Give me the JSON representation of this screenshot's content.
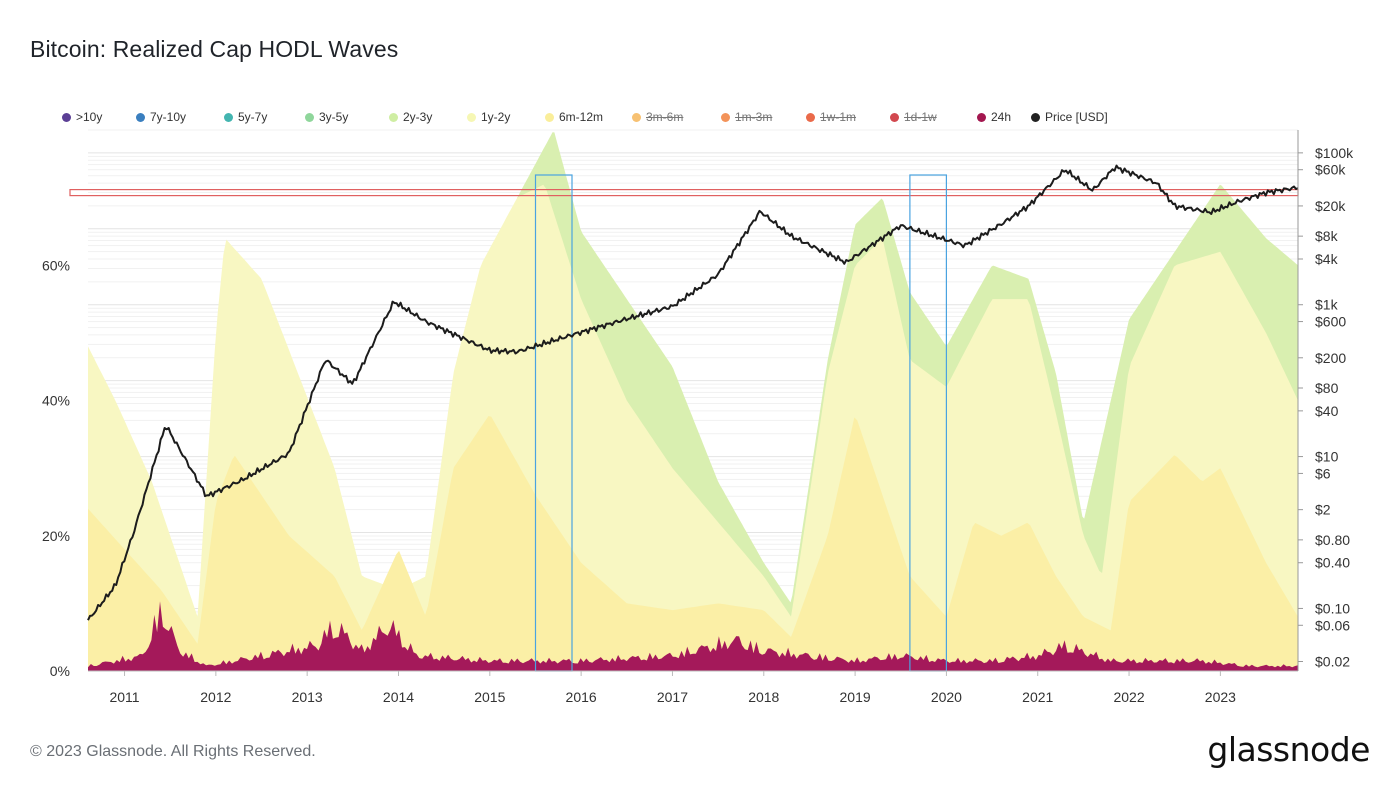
{
  "header": {
    "title": "Bitcoin: Realized Cap HODL Waves"
  },
  "legend": [
    {
      "label": ">10y",
      "color": "#5b3f95",
      "disabled": false
    },
    {
      "label": "7y-10y",
      "color": "#3a7fbf",
      "disabled": false
    },
    {
      "label": "5y-7y",
      "color": "#43b5b0",
      "disabled": false
    },
    {
      "label": "3y-5y",
      "color": "#8fd69b",
      "disabled": false
    },
    {
      "label": "2y-3y",
      "color": "#cfeea3",
      "disabled": false
    },
    {
      "label": "1y-2y",
      "color": "#f6f7b4",
      "disabled": false
    },
    {
      "label": "6m-12m",
      "color": "#faee9a",
      "disabled": false
    },
    {
      "label": "3m-6m",
      "color": "#f7c172",
      "disabled": true
    },
    {
      "label": "1m-3m",
      "color": "#f3935a",
      "disabled": true
    },
    {
      "label": "1w-1m",
      "color": "#ea6a4a",
      "disabled": true
    },
    {
      "label": "1d-1w",
      "color": "#d2484f",
      "disabled": true
    },
    {
      "label": "24h",
      "color": "#a3174f",
      "disabled": false
    },
    {
      "label": "Price [USD]",
      "color": "#222222",
      "disabled": false
    }
  ],
  "chart_data": {
    "type": "area",
    "title": "Bitcoin: Realized Cap HODL Waves",
    "x_ticks": [
      "2011",
      "2012",
      "2013",
      "2014",
      "2015",
      "2016",
      "2017",
      "2018",
      "2019",
      "2020",
      "2021",
      "2022",
      "2023"
    ],
    "x_range": [
      2010.6,
      2023.85
    ],
    "y_left_ticks": [
      "0%",
      "20%",
      "40%",
      "60%"
    ],
    "y_left_range": [
      0,
      80
    ],
    "y_right_ticks": [
      "$100k",
      "$60k",
      "$20k",
      "$8k",
      "$4k",
      "$1k",
      "$600",
      "$200",
      "$80",
      "$40",
      "$10",
      "$6",
      "$2",
      "$0.80",
      "$0.40",
      "$0.10",
      "$0.06",
      "$0.02"
    ],
    "y_right_values": [
      100000,
      60000,
      20000,
      8000,
      4000,
      1000,
      600,
      200,
      80,
      40,
      10,
      6,
      2,
      0.8,
      0.4,
      0.1,
      0.06,
      0.02
    ],
    "y_right_range": [
      0.015,
      200000
    ],
    "series": [
      {
        "name": "24h",
        "x": [
          2010.6,
          2011.2,
          2011.4,
          2011.6,
          2011.9,
          2012.5,
          2013.1,
          2013.3,
          2013.6,
          2013.9,
          2014.2,
          2015.0,
          2016.0,
          2017.0,
          2017.7,
          2018.0,
          2018.5,
          2019.0,
          2019.5,
          2020.0,
          2020.5,
          2021.0,
          2021.3,
          2021.8,
          2022.2,
          2022.8,
          2023.3,
          2023.85
        ],
        "values": [
          1,
          3,
          12,
          4,
          1,
          3,
          5,
          9,
          4,
          9,
          3,
          2,
          2,
          3,
          6,
          4,
          3,
          2,
          3,
          2,
          2,
          3,
          5,
          2,
          2,
          2,
          1,
          1
        ]
      },
      {
        "name": "6m-12m",
        "x": [
          2010.6,
          2011.0,
          2011.4,
          2011.8,
          2012.0,
          2012.2,
          2012.8,
          2013.3,
          2013.6,
          2014.0,
          2014.3,
          2014.6,
          2015.0,
          2015.5,
          2016.0,
          2016.5,
          2017.0,
          2017.5,
          2018.0,
          2018.3,
          2018.7,
          2019.0,
          2019.3,
          2019.6,
          2020.0,
          2020.3,
          2020.6,
          2020.9,
          2021.2,
          2021.5,
          2021.8,
          2022.0,
          2022.5,
          2022.8,
          2023.0,
          2023.5,
          2023.85
        ],
        "values": [
          24,
          18,
          12,
          4,
          25,
          32,
          20,
          14,
          6,
          18,
          8,
          30,
          38,
          26,
          16,
          10,
          9,
          10,
          9,
          5,
          20,
          38,
          26,
          14,
          8,
          22,
          20,
          22,
          14,
          8,
          6,
          25,
          32,
          28,
          30,
          16,
          8
        ]
      },
      {
        "name": "1y-2y",
        "x": [
          2010.6,
          2010.9,
          2011.3,
          2011.8,
          2012.0,
          2012.1,
          2012.5,
          2012.9,
          2013.3,
          2013.6,
          2014.0,
          2014.3,
          2014.6,
          2014.9,
          2015.3,
          2015.6,
          2016.0,
          2016.5,
          2017.0,
          2017.5,
          2018.0,
          2018.3,
          2018.7,
          2019.0,
          2019.3,
          2019.6,
          2020.0,
          2020.5,
          2020.9,
          2021.2,
          2021.5,
          2021.7,
          2022.0,
          2022.5,
          2023.0,
          2023.5,
          2023.85
        ],
        "values": [
          48,
          40,
          28,
          8,
          50,
          64,
          58,
          44,
          30,
          14,
          12,
          14,
          44,
          60,
          70,
          72,
          55,
          40,
          30,
          22,
          14,
          8,
          44,
          60,
          64,
          46,
          42,
          55,
          55,
          38,
          20,
          14,
          45,
          60,
          62,
          50,
          40
        ]
      },
      {
        "name": "2y-3y",
        "x": [
          2015.3,
          2015.7,
          2016.0,
          2016.5,
          2017.0,
          2017.5,
          2018.0,
          2018.3,
          2018.7,
          2019.0,
          2019.3,
          2019.6,
          2020.0,
          2020.5,
          2020.9,
          2021.2,
          2021.5,
          2022.0,
          2022.5,
          2023.0,
          2023.5,
          2023.85
        ],
        "values": [
          70,
          80,
          65,
          55,
          45,
          28,
          16,
          10,
          46,
          66,
          70,
          56,
          48,
          60,
          58,
          44,
          22,
          52,
          62,
          72,
          64,
          60
        ]
      },
      {
        "name": "Price [USD]",
        "x": [
          2010.6,
          2010.9,
          2011.1,
          2011.45,
          2011.9,
          2012.3,
          2012.8,
          2013.2,
          2013.5,
          2013.95,
          2014.3,
          2015.0,
          2015.3,
          2015.9,
          2016.5,
          2017.0,
          2017.5,
          2017.96,
          2018.3,
          2018.9,
          2019.5,
          2020.2,
          2020.6,
          2020.9,
          2021.3,
          2021.6,
          2021.85,
          2022.3,
          2022.5,
          2022.9,
          2023.2,
          2023.5,
          2023.85
        ],
        "values": [
          0.07,
          0.2,
          1,
          26,
          3,
          5,
          11,
          190,
          90,
          1100,
          600,
          250,
          240,
          400,
          650,
          950,
          2500,
          17000,
          8000,
          3600,
          11000,
          6000,
          11500,
          20000,
          60000,
          32000,
          65000,
          40000,
          20000,
          16500,
          23000,
          30000,
          35000
        ]
      }
    ],
    "highlight_boxes": [
      {
        "x_start": 2015.5,
        "x_end": 2015.9
      },
      {
        "x_start": 2019.6,
        "x_end": 2020.0
      }
    ],
    "horizontal_marker": {
      "price": 30000
    },
    "grid": true
  },
  "footer": {
    "copyright": "© 2023 Glassnode. All Rights Reserved."
  },
  "brand": {
    "name": "glassnode"
  }
}
